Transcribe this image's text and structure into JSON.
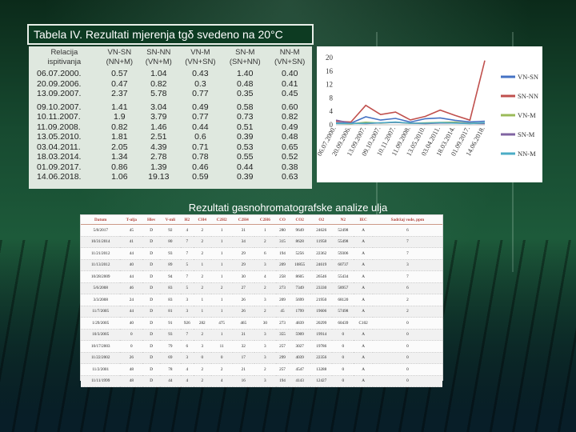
{
  "slide": {
    "title": "Tabela IV. Rezultati mjerenja tgδ svedeno na 20°C",
    "subtitle": "Rezultati gasnohromatografske analize ulja"
  },
  "measurement_table": {
    "headers": [
      [
        "Relacija",
        "ispitivanja"
      ],
      [
        "VN-SN",
        "(NN+M)"
      ],
      [
        "SN-NN",
        "(VN+M)"
      ],
      [
        "VN-M",
        "(VN+SN)"
      ],
      [
        "SN-M",
        "(SN+NN)"
      ],
      [
        "NN-M",
        "(VN+SN)"
      ]
    ],
    "group_a": [
      [
        "06.07.2000.",
        "0.57",
        "1.04",
        "0.43",
        "1.40",
        "0.40"
      ],
      [
        "20.09.2006.",
        "0.47",
        "0.82",
        "0.3",
        "0.48",
        "0.41"
      ],
      [
        "13.09.2007.",
        "2.37",
        "5.78",
        "0.77",
        "0.35",
        "0.45"
      ]
    ],
    "group_b": [
      [
        "09.10.2007.",
        "1.41",
        "3.04",
        "0.49",
        "0.58",
        "0.60"
      ],
      [
        "10.11.2007.",
        "1.9",
        "3.79",
        "0.77",
        "0.73",
        "0.82"
      ],
      [
        "11.09.2008.",
        "0.82",
        "1.46",
        "0.44",
        "0.51",
        "0.49"
      ],
      [
        "13.05.2010.",
        "1.81",
        "2.51",
        "0.6",
        "0.39",
        "0.48"
      ],
      [
        "03.04.2011.",
        "2.05",
        "4.39",
        "0.71",
        "0.53",
        "0.65"
      ],
      [
        "18.03.2014.",
        "1.34",
        "2.78",
        "0.78",
        "0.55",
        "0.52"
      ],
      [
        "01.09.2017.",
        "0.86",
        "1.39",
        "0.46",
        "0.44",
        "0.38"
      ],
      [
        "14.06.2018.",
        "1.06",
        "19.13",
        "0.59",
        "0.39",
        "0.63"
      ]
    ]
  },
  "chart_data": {
    "type": "line",
    "x": [
      "06.07.2000.",
      "20.09.2006.",
      "13.09.2007.",
      "09.10.2007.",
      "10.11.2007.",
      "11.09.2008.",
      "13.05.2010.",
      "03.04.2011.",
      "18.03.2014.",
      "01.09.2017.",
      "14.06.2018."
    ],
    "x_tick_labels": [
      "06.07.2000.",
      "20.09.2006.",
      "13.09.2007.",
      "09.10.2007.",
      "10.11.2007.",
      "11.09.2008.",
      "13.05.2010.",
      "03.04.2011.",
      "18.03.2014.",
      "01.09.2017.",
      "14.06.2018."
    ],
    "series": [
      {
        "name": "VN-SN",
        "color": "#4472c4",
        "values": [
          0.57,
          0.47,
          2.37,
          1.41,
          1.9,
          0.82,
          1.81,
          2.05,
          1.34,
          0.86,
          1.06
        ]
      },
      {
        "name": "SN-NN",
        "color": "#c0504d",
        "values": [
          1.04,
          0.82,
          5.78,
          3.04,
          3.79,
          1.46,
          2.51,
          4.39,
          2.78,
          1.39,
          19.13
        ]
      },
      {
        "name": "VN-M",
        "color": "#9bbb59",
        "values": [
          0.43,
          0.3,
          0.77,
          0.49,
          0.77,
          0.44,
          0.6,
          0.71,
          0.78,
          0.46,
          0.59
        ]
      },
      {
        "name": "SN-M",
        "color": "#8064a2",
        "values": [
          1.4,
          0.48,
          0.35,
          0.58,
          0.73,
          0.51,
          0.39,
          0.53,
          0.55,
          0.44,
          0.39
        ]
      },
      {
        "name": "NN-M",
        "color": "#4bacc6",
        "values": [
          0.4,
          0.41,
          0.45,
          0.6,
          0.82,
          0.49,
          0.48,
          0.65,
          0.52,
          0.38,
          0.63
        ]
      }
    ],
    "y_ticks": [
      "20",
      "16",
      "12",
      "8",
      "4",
      "0"
    ],
    "ylim": [
      0,
      20
    ],
    "legend": "right",
    "grid": false,
    "title": "",
    "xlabel": "",
    "ylabel": ""
  },
  "scan_table": {
    "headers": [
      "Datum",
      "T-ulja",
      "Hlev",
      "V-mli",
      "H2",
      "CH4",
      "C2H2",
      "C2H4",
      "C2H6",
      "CO",
      "CO2",
      "O2",
      "N2",
      "IEC",
      "Sadržaj vode, ppm"
    ],
    "rows": [
      [
        "5/8/2017",
        "45",
        "D",
        "92",
        "4",
        "2",
        "1",
        "31",
        "1",
        "280",
        "9649",
        "24626",
        "52498",
        "A",
        "6"
      ],
      [
        "10/31/2014",
        "41",
        "D",
        "80",
        "7",
        "2",
        "1",
        "34",
        "2",
        "315",
        "8628",
        "11958",
        "55498",
        "A",
        "7"
      ],
      [
        "11/21/2012",
        "44",
        "D",
        "93",
        "7",
        "2",
        "1",
        "29",
        "6",
        "194",
        "5256",
        "22362",
        "59306",
        "A",
        "7"
      ],
      [
        "11/13/2012",
        "40",
        "D",
        "89",
        "5",
        "1",
        "1",
        "29",
        "3",
        "209",
        "10855",
        "24619",
        "60737",
        "A",
        "3"
      ],
      [
        "10/28/2009",
        "44",
        "D",
        "94",
        "7",
        "2",
        "1",
        "30",
        "4",
        "258",
        "8605",
        "26546",
        "55434",
        "A",
        "7"
      ],
      [
        "5/6/2008",
        "46",
        "D",
        "83",
        "5",
        "2",
        "2",
        "27",
        "2",
        "273",
        "7349",
        "23330",
        "58957",
        "A",
        "6"
      ],
      [
        "3/3/2008",
        "24",
        "D",
        "83",
        "3",
        "1",
        "1",
        "26",
        "3",
        "209",
        "5699",
        "21950",
        "68120",
        "A",
        "2"
      ],
      [
        "11/7/2005",
        "44",
        "D",
        "81",
        "3",
        "1",
        "1",
        "26",
        "2",
        "45",
        "1799",
        "19606",
        "57498",
        "A",
        "2"
      ],
      [
        "1/29/2005",
        "40",
        "D",
        "91",
        "926",
        "282",
        "475",
        "465",
        "30",
        "273",
        "4839",
        "20299",
        "60439",
        "C102",
        "0"
      ],
      [
        "10/3/2005",
        "0",
        "D",
        "93",
        "7",
        "2",
        "1",
        "31",
        "3",
        "355",
        "5909",
        "19914",
        "0",
        "A",
        "0"
      ],
      [
        "10/17/2003",
        "0",
        "D",
        "79",
        "6",
        "3",
        "11",
        "32",
        "3",
        "257",
        "3027",
        "19786",
        "0",
        "A",
        "0"
      ],
      [
        "11/22/2002",
        "26",
        "D",
        "69",
        "3",
        "0",
        "0",
        "17",
        "3",
        "299",
        "4039",
        "22356",
        "0",
        "A",
        "0"
      ],
      [
        "11/2/2001",
        "48",
        "D",
        "78",
        "4",
        "2",
        "2",
        "21",
        "2",
        "257",
        "4547",
        "13288",
        "0",
        "A",
        "0"
      ],
      [
        "11/11/1999",
        "48",
        "D",
        "44",
        "4",
        "2",
        "4",
        "16",
        "3",
        "194",
        "4143",
        "12427",
        "0",
        "A",
        "0"
      ]
    ]
  }
}
